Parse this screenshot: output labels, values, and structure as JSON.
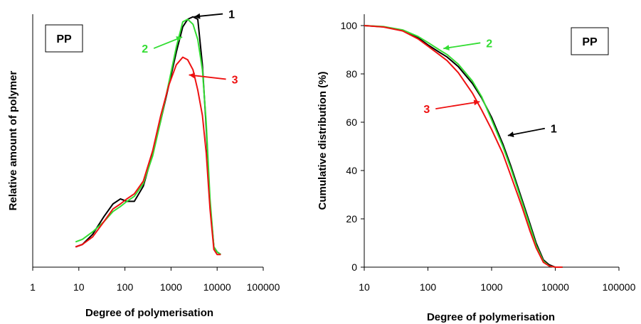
{
  "colors": {
    "series_1": "#000000",
    "series_2": "#33dd33",
    "series_3": "#ee1111"
  },
  "chart_data": [
    {
      "type": "line",
      "panel_label": "PP",
      "xlabel": "Degree of polymerisation",
      "ylabel": "Relative amount of polymer",
      "x_scale": "log",
      "xlim": [
        1,
        100000
      ],
      "ylim": [
        0,
        1
      ],
      "y_ticks_shown": false,
      "x_ticks": [
        "1",
        "10",
        "100",
        "1000",
        "10000",
        "100000"
      ],
      "annotations": [
        {
          "text": "1",
          "series": "1",
          "x": 3200,
          "y": 0.99
        },
        {
          "text": "2",
          "series": "2",
          "x": 1750,
          "y": 0.91
        },
        {
          "text": "3",
          "series": "3",
          "x": 2450,
          "y": 0.76
        }
      ],
      "series": [
        {
          "label": "1",
          "color": "#000000",
          "x": [
            8.5,
            12,
            20,
            35,
            55,
            80,
            110,
            160,
            250,
            400,
            600,
            900,
            1300,
            1800,
            2300,
            3000,
            3800,
            4800,
            5800,
            7000,
            8500,
            10000,
            12000
          ],
          "y": [
            0.08,
            0.09,
            0.13,
            0.2,
            0.25,
            0.27,
            0.26,
            0.26,
            0.32,
            0.45,
            0.58,
            0.72,
            0.85,
            0.95,
            0.98,
            0.99,
            0.98,
            0.8,
            0.55,
            0.25,
            0.08,
            0.06,
            0.05
          ]
        },
        {
          "label": "2",
          "color": "#33dd33",
          "x": [
            8.5,
            12,
            20,
            35,
            55,
            80,
            110,
            160,
            250,
            400,
            600,
            900,
            1300,
            1800,
            2300,
            3000,
            3800,
            4800,
            5800,
            7000,
            8500,
            10000,
            12000
          ],
          "y": [
            0.1,
            0.11,
            0.14,
            0.18,
            0.22,
            0.24,
            0.26,
            0.28,
            0.33,
            0.44,
            0.58,
            0.73,
            0.87,
            0.97,
            0.98,
            0.96,
            0.9,
            0.78,
            0.57,
            0.27,
            0.08,
            0.06,
            0.05
          ]
        },
        {
          "label": "3",
          "color": "#ee1111",
          "x": [
            8.5,
            12,
            20,
            35,
            55,
            80,
            110,
            160,
            250,
            400,
            600,
            900,
            1300,
            1800,
            2300,
            3000,
            3800,
            4800,
            5800,
            7000,
            8500,
            10000,
            12000
          ],
          "y": [
            0.08,
            0.09,
            0.12,
            0.18,
            0.23,
            0.25,
            0.27,
            0.29,
            0.34,
            0.46,
            0.6,
            0.72,
            0.8,
            0.83,
            0.82,
            0.78,
            0.7,
            0.6,
            0.45,
            0.23,
            0.07,
            0.05,
            0.05
          ]
        }
      ]
    },
    {
      "type": "line",
      "panel_label": "PP",
      "xlabel": "Degree of polymerisation",
      "ylabel": "Cumulative distribution (%)",
      "x_scale": "log",
      "xlim": [
        10,
        100000
      ],
      "ylim": [
        0,
        100
      ],
      "x_ticks": [
        "10",
        "100",
        "1000",
        "10000",
        "100000"
      ],
      "y_ticks": [
        "0",
        "20",
        "40",
        "60",
        "80",
        "100"
      ],
      "annotations": [
        {
          "text": "2",
          "series": "2",
          "x": 175,
          "y": 90.5
        },
        {
          "text": "3",
          "series": "3",
          "x": 650,
          "y": 68.5
        },
        {
          "text": "1",
          "series": "1",
          "x": 1800,
          "y": 54.5
        }
      ],
      "series": [
        {
          "label": "1",
          "color": "#000000",
          "x": [
            10,
            20,
            40,
            70,
            100,
            150,
            200,
            300,
            500,
            700,
            1000,
            1500,
            2000,
            3000,
            4000,
            5000,
            6500,
            8000,
            10000,
            13000
          ],
          "y": [
            100,
            99.5,
            98,
            95,
            92,
            89,
            87,
            83,
            76,
            70,
            62,
            51,
            42,
            28,
            18,
            10,
            3,
            1,
            0,
            0
          ]
        },
        {
          "label": "2",
          "color": "#33dd33",
          "x": [
            10,
            20,
            40,
            70,
            100,
            150,
            200,
            300,
            500,
            700,
            1000,
            1500,
            2000,
            3000,
            4000,
            5000,
            6500,
            8000,
            10000,
            13000
          ],
          "y": [
            100,
            99.6,
            98.2,
            95.5,
            93,
            90,
            88,
            84,
            77,
            70.5,
            61,
            50,
            41,
            27,
            17,
            9,
            2.5,
            0.5,
            0,
            0
          ]
        },
        {
          "label": "3",
          "color": "#ee1111",
          "x": [
            10,
            20,
            40,
            70,
            100,
            150,
            200,
            300,
            500,
            700,
            1000,
            1500,
            2000,
            3000,
            4000,
            5000,
            6500,
            8000,
            10000,
            13000
          ],
          "y": [
            100,
            99.4,
            97.8,
            94.5,
            91.5,
            88,
            85.5,
            80.5,
            72,
            65,
            57,
            47,
            38,
            25,
            15,
            8,
            2,
            0.5,
            0,
            0
          ]
        }
      ]
    }
  ]
}
